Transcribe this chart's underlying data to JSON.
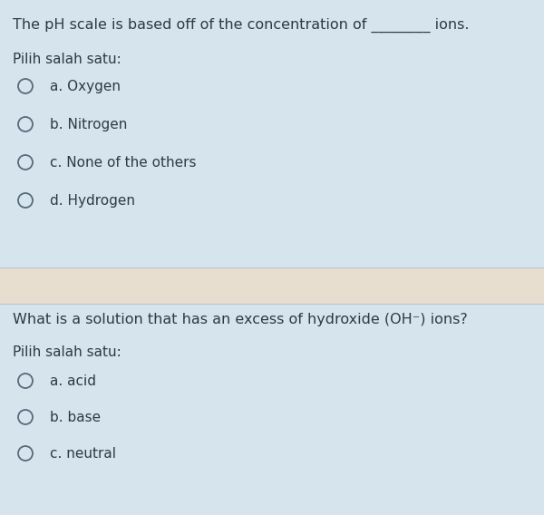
{
  "bg_color": "#d6e4ee",
  "section1_question": "The pH scale is based off of the concentration of ________ ions.",
  "section1_subtitle": "Pilih salah satu:",
  "section1_options": [
    "a. Oxygen",
    "b. Nitrogen",
    "c. None of the others",
    "d. Hydrogen"
  ],
  "separator_color": "#e8ded0",
  "section2_question": "What is a solution that has an excess of hydroxide (OH⁻) ions?",
  "section2_subtitle": "Pilih salah satu:",
  "section2_options": [
    "a. acid",
    "b. base",
    "c. neutral"
  ],
  "text_color": "#2d3b47",
  "circle_color": "#5a6a7a",
  "question_fontsize": 11.5,
  "subtitle_fontsize": 11,
  "option_fontsize": 11,
  "figsize": [
    6.0,
    5.68
  ],
  "dpi": 100
}
